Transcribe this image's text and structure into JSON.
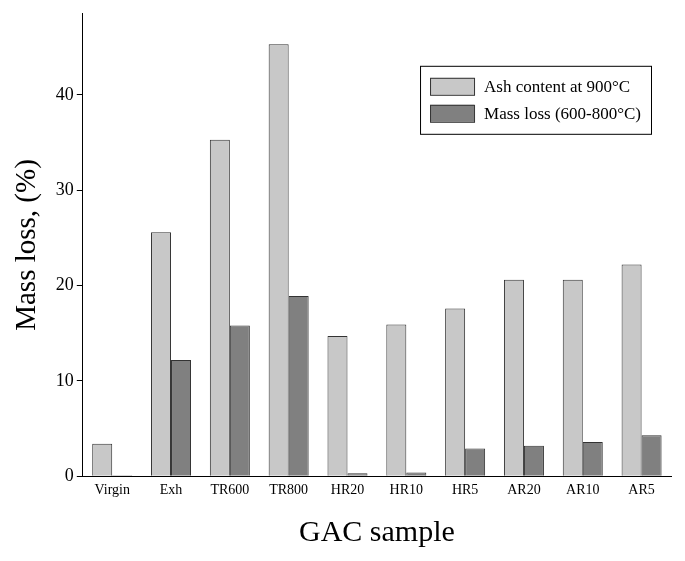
{
  "chart_data": {
    "type": "bar",
    "x_label": "GAC sample",
    "y_label": "Mass loss, (%)",
    "categories": [
      "Virgin",
      "Exh",
      "TR600",
      "TR800",
      "HR20",
      "HR10",
      "HR5",
      "AR20",
      "AR10",
      "AR5"
    ],
    "series": [
      {
        "name": "Ash content at 900°C",
        "color": "#c8c8c8",
        "values": [
          3.4,
          25.6,
          35.3,
          45.3,
          14.7,
          15.9,
          17.6,
          20.6,
          20.6,
          22.2
        ]
      },
      {
        "name": "Mass loss (600-800°C)",
        "color": "#808080",
        "values": [
          0.1,
          12.2,
          15.8,
          18.9,
          0.3,
          0.4,
          2.9,
          3.2,
          3.6,
          4.3
        ]
      }
    ],
    "ylim": [
      0,
      48.5
    ],
    "yticks": [
      0,
      10,
      20,
      30,
      40
    ],
    "grid": false,
    "legend": "upper right"
  }
}
